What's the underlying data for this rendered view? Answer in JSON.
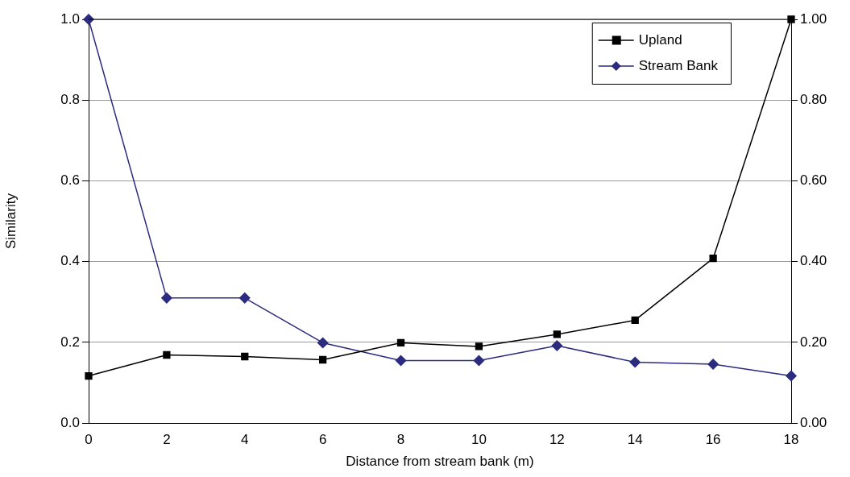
{
  "chart_data": {
    "type": "line",
    "xlabel": "Distance from stream bank (m)",
    "ylabel": "Similarity",
    "x": [
      0,
      2,
      4,
      6,
      8,
      10,
      12,
      14,
      16,
      18
    ],
    "series": [
      {
        "name": "Upland",
        "color": "#000000",
        "marker": "square",
        "values": [
          0.117,
          0.169,
          0.165,
          0.157,
          0.199,
          0.19,
          0.22,
          0.255,
          0.408,
          1.0
        ]
      },
      {
        "name": "Stream Bank",
        "color": "#2b2b80",
        "marker": "diamond",
        "values": [
          1.0,
          0.31,
          0.31,
          0.199,
          0.155,
          0.155,
          0.192,
          0.151,
          0.146,
          0.117
        ]
      }
    ],
    "xlim": [
      0,
      18
    ],
    "xticks": [
      0,
      2,
      4,
      6,
      8,
      10,
      12,
      14,
      16,
      18
    ],
    "ylim": [
      0,
      1
    ],
    "yticks": [
      {
        "value": 0,
        "label": "0.0"
      },
      {
        "value": 0.2,
        "label": "0.2"
      },
      {
        "value": 0.4,
        "label": "0.4"
      },
      {
        "value": 0.6,
        "label": "0.6"
      },
      {
        "value": 0.8,
        "label": "0.8"
      },
      {
        "value": 1,
        "label": "1.0"
      }
    ],
    "y2lim": [
      0,
      1
    ],
    "y2ticks": [
      {
        "value": 0,
        "label": "0.00"
      },
      {
        "value": 0.2,
        "label": "0.20"
      },
      {
        "value": 0.4,
        "label": "0.40"
      },
      {
        "value": 0.6,
        "label": "0.60"
      },
      {
        "value": 0.8,
        "label": "0.80"
      },
      {
        "value": 1,
        "label": "1.00"
      }
    ],
    "grid": "y",
    "legend": "top right",
    "line_style": "solid"
  }
}
